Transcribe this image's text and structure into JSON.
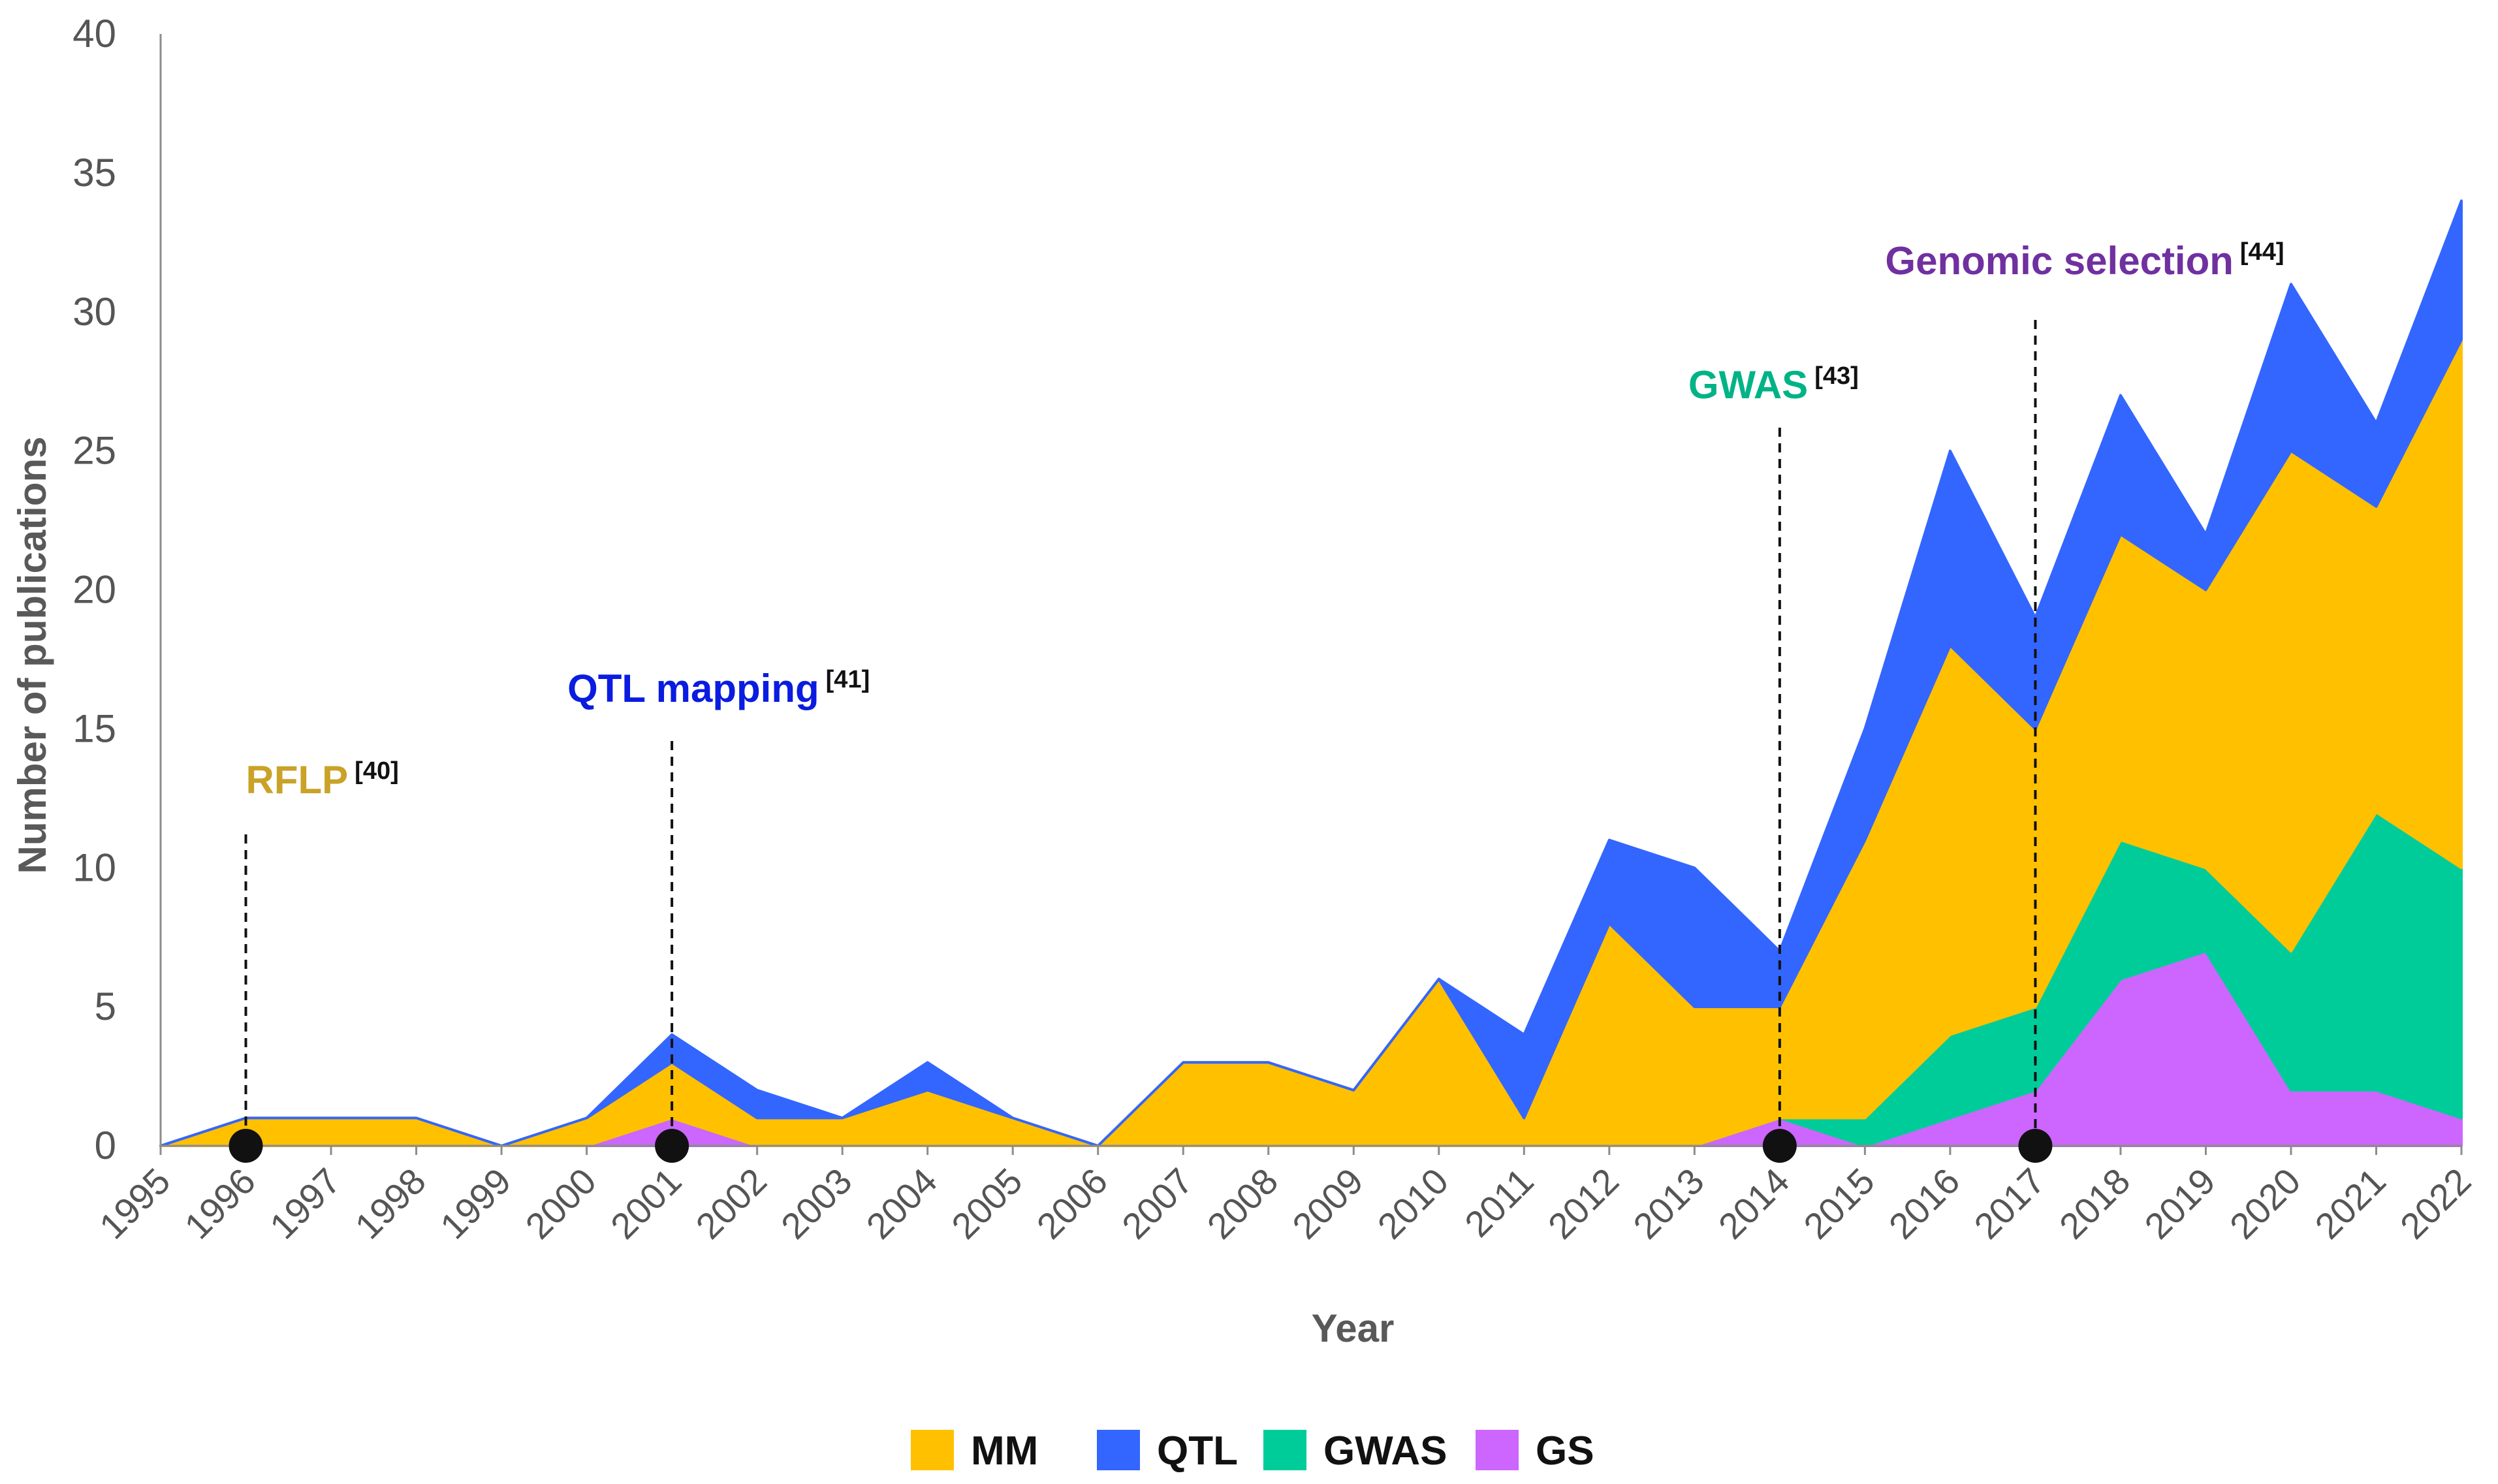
{
  "chart_data": {
    "type": "area",
    "stacked": true,
    "title": "",
    "xlabel": "Year",
    "ylabel": "Number of publications",
    "ylim": [
      0,
      40
    ],
    "yticks": [
      0,
      5,
      10,
      15,
      20,
      25,
      30,
      35,
      40
    ],
    "categories": [
      "1995",
      "1996",
      "1997",
      "1998",
      "1999",
      "2000",
      "2001",
      "2002",
      "2003",
      "2004",
      "2005",
      "2006",
      "2007",
      "2008",
      "2009",
      "2010",
      "2011",
      "2012",
      "2013",
      "2014",
      "2015",
      "2016",
      "2017",
      "2018",
      "2019",
      "2020",
      "2021",
      "2022"
    ],
    "series": [
      {
        "name": "GS",
        "color": "#cc66ff",
        "values": [
          0,
          0,
          0,
          0,
          0,
          0,
          1,
          0,
          0,
          0,
          0,
          0,
          0,
          0,
          0,
          0,
          0,
          0,
          0,
          1,
          0,
          1,
          2,
          6,
          7,
          2,
          2,
          1
        ]
      },
      {
        "name": "GWAS",
        "color": "#00cc99",
        "values": [
          0,
          0,
          0,
          0,
          0,
          0,
          0,
          0,
          0,
          0,
          0,
          0,
          0,
          0,
          0,
          0,
          0,
          0,
          0,
          0,
          1,
          3,
          3,
          5,
          3,
          5,
          10,
          9
        ]
      },
      {
        "name": "MM",
        "color": "#ffc000",
        "values": [
          0,
          1,
          1,
          1,
          0,
          1,
          2,
          1,
          1,
          2,
          1,
          0,
          3,
          3,
          2,
          6,
          1,
          8,
          5,
          4,
          10,
          14,
          10,
          11,
          10,
          18,
          11,
          19
        ]
      },
      {
        "name": "QTL",
        "color": "#3366ff",
        "values": [
          0,
          0,
          0,
          0,
          0,
          0,
          1,
          1,
          0,
          1,
          0,
          0,
          0,
          0,
          0,
          0,
          3,
          3,
          5,
          2,
          4,
          7,
          4,
          5,
          2,
          6,
          3,
          5
        ]
      }
    ],
    "legend_order": [
      "MM",
      "QTL",
      "GWAS",
      "GS"
    ],
    "legend_position": "bottom-center",
    "grid": false,
    "annotations": [
      {
        "label": "RFLP",
        "ref": "[40]",
        "year": "1996",
        "color": "#c9a227",
        "marker_color": "#111111"
      },
      {
        "label": "QTL mapping",
        "ref": "[41]",
        "year": "2001",
        "color": "#0a1ce0",
        "marker_color": "#111111"
      },
      {
        "label": "GWAS",
        "ref": "[43]",
        "year": "2014",
        "color": "#00b386",
        "marker_color": "#111111"
      },
      {
        "label": "Genomic selection",
        "ref": "[44]",
        "year": "2017",
        "color": "#7030a0",
        "marker_color": "#111111"
      }
    ]
  }
}
